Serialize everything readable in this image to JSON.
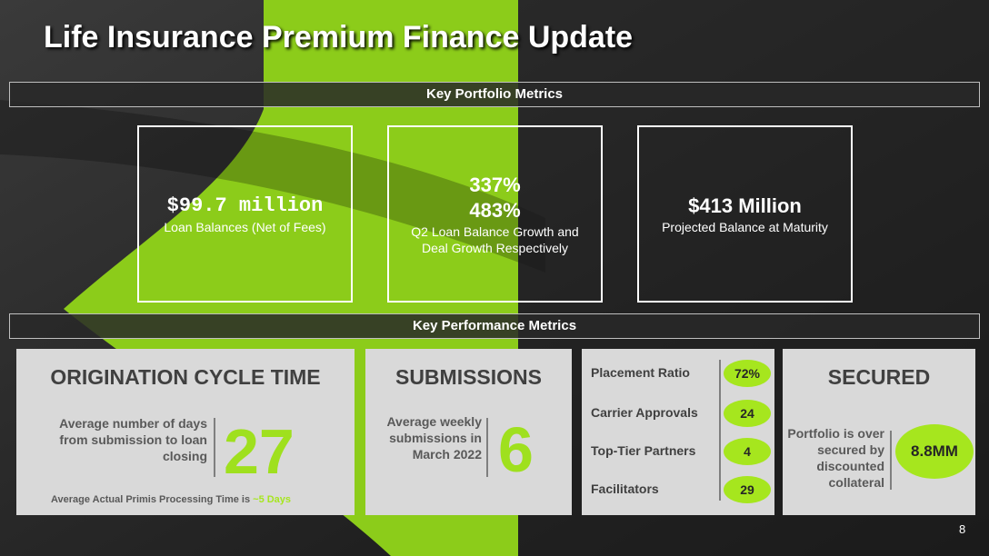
{
  "title": "Life Insurance Premium Finance Update",
  "portfolio": {
    "heading": "Key Portfolio Metrics",
    "cards": [
      {
        "values": [
          "$99.7 million"
        ],
        "label": "Loan Balances (Net of Fees)"
      },
      {
        "values": [
          "337%",
          "483%"
        ],
        "label": "Q2 Loan Balance Growth and Deal Growth Respectively"
      },
      {
        "values": [
          "$413 Million"
        ],
        "label": "Projected Balance at Maturity"
      }
    ]
  },
  "performance": {
    "heading": "Key Performance Metrics",
    "origination": {
      "heading": "ORIGINATION CYCLE TIME",
      "text": "Average number of days from submission to loan closing",
      "value": "27",
      "note": "Average Actual Primis Processing Time is",
      "note_highlight": "~5 Days"
    },
    "submissions": {
      "heading": "SUBMISSIONS",
      "text": "Average weekly submissions in March 2022",
      "value": "6"
    },
    "ratios": [
      {
        "label": "Placement Ratio",
        "value": "72%"
      },
      {
        "label": "Carrier Approvals",
        "value": "24"
      },
      {
        "label": "Top-Tier Partners",
        "value": "4"
      },
      {
        "label": "Facilitators",
        "value": "29"
      }
    ],
    "secured": {
      "heading": "SECURED",
      "text": "Portfolio is over secured by discounted collateral",
      "value": "8.8MM"
    }
  },
  "page_number": "8"
}
